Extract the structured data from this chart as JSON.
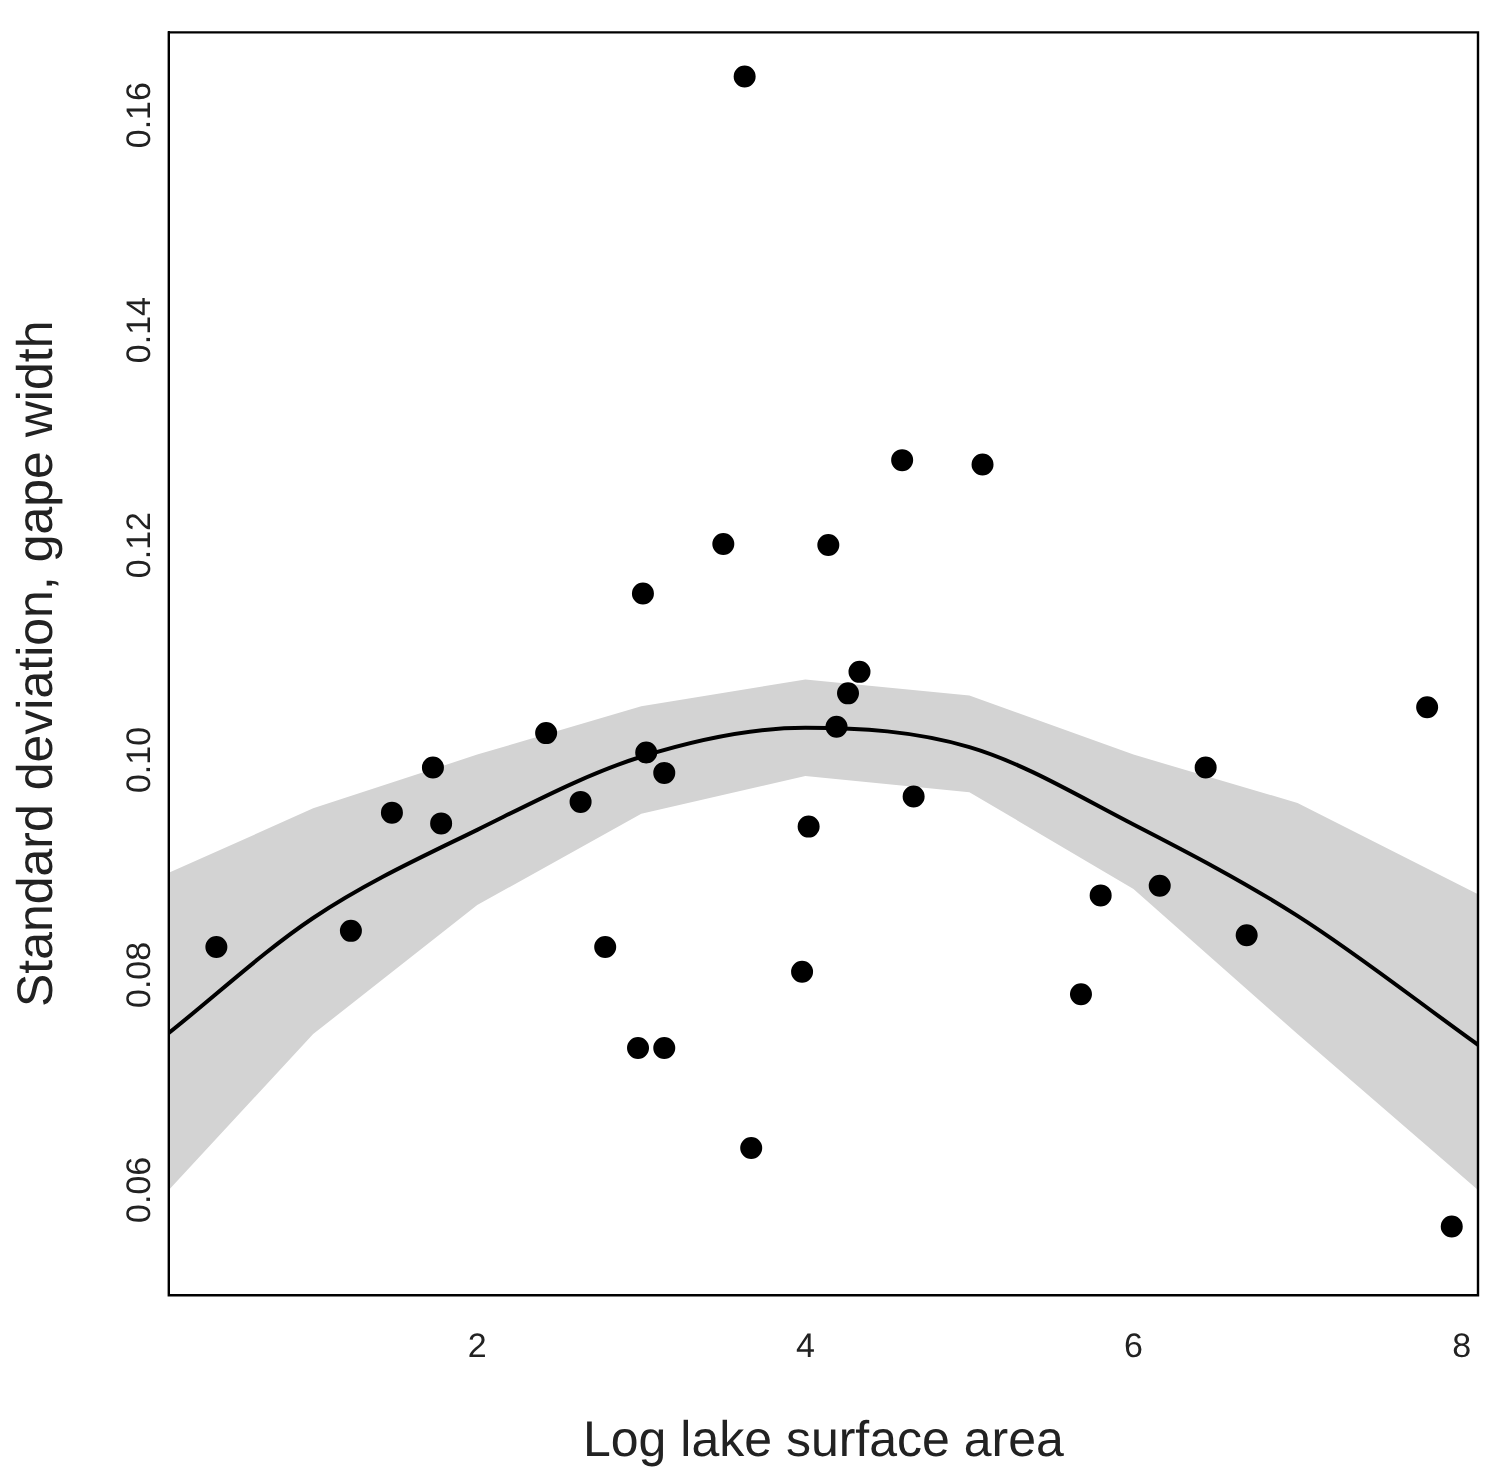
{
  "chart_data": {
    "type": "scatter",
    "xlabel": "Log lake surface area",
    "ylabel": "Standard deviation, gape width",
    "xlim": [
      0.12,
      8.1
    ],
    "ylim": [
      0.0502,
      0.1677
    ],
    "xticks": [
      2,
      4,
      6,
      8
    ],
    "yticks": [
      0.06,
      0.08,
      {
        "value": 0.1,
        "label": "0.10"
      },
      0.12,
      0.14,
      0.16
    ],
    "grid": false,
    "legend": false,
    "marker": "circle",
    "series": [
      {
        "color": "#000000",
        "x": [
          0.41,
          1.23,
          1.48,
          1.73,
          1.78,
          2.42,
          2.63,
          2.78,
          2.98,
          3.14,
          3.03,
          3.14,
          3.67,
          3.98,
          4.02,
          4.19,
          4.66,
          5.68,
          5.8,
          6.16,
          6.44,
          6.69,
          7.94,
          7.79,
          3.63,
          4.59,
          5.08,
          3.5,
          4.14,
          3.01,
          4.33,
          4.26
        ],
        "values": [
          0.0826,
          0.0841,
          0.0951,
          0.0993,
          0.0941,
          0.1025,
          0.0961,
          0.0826,
          0.0732,
          0.0732,
          0.1007,
          0.0988,
          0.0639,
          0.0803,
          0.0938,
          0.1031,
          0.0966,
          0.0782,
          0.0874,
          0.0883,
          0.0993,
          0.0837,
          0.0566,
          0.1049,
          0.1636,
          0.1279,
          0.1275,
          0.1201,
          0.12,
          0.1155,
          0.1082,
          0.1062
        ]
      },
      {
        "type": "line",
        "color": "#000000",
        "marker": "none",
        "line_style": "solid",
        "x": [
          0.12,
          1,
          2,
          3,
          4,
          5,
          6,
          7,
          8.1
        ],
        "values": [
          0.0746,
          0.0853,
          0.0935,
          0.1003,
          0.103,
          0.1012,
          0.094,
          0.0855,
          0.0735
        ],
        "lower": [
          0.06,
          0.0745,
          0.0865,
          0.095,
          0.0985,
          0.097,
          0.088,
          0.0745,
          0.06
        ],
        "upper": [
          0.0895,
          0.0955,
          0.1005,
          0.105,
          0.1075,
          0.106,
          0.1005,
          0.096,
          0.0875
        ]
      }
    ]
  }
}
